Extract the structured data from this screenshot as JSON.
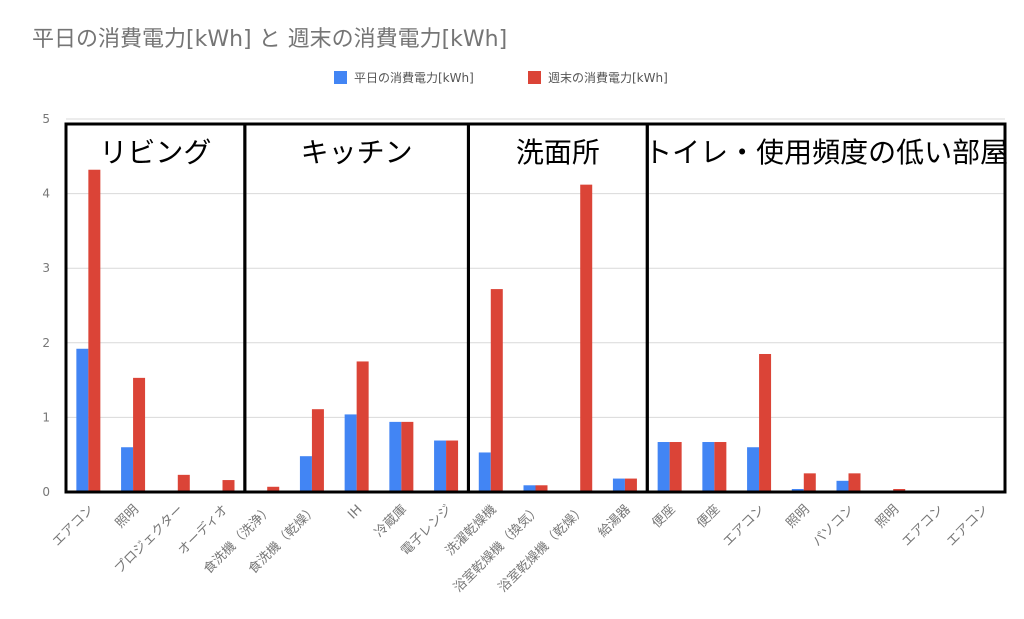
{
  "chart_data": {
    "type": "bar",
    "title": "平日の消費電力[kWh] と 週末の消費電力[kWh]",
    "xlabel": "",
    "ylabel": "",
    "ylim": [
      0,
      5
    ],
    "yticks": [
      "0",
      "1",
      "2",
      "3",
      "4",
      "5"
    ],
    "grid": true,
    "legend_position": "top-center",
    "colors": {
      "weekday": "#4285f4",
      "weekend": "#db4437"
    },
    "categories": [
      "エアコン",
      "照明",
      "プロジェクター",
      "オーディオ",
      "食洗機（洗浄）",
      "食洗機（乾燥）",
      "IH",
      "冷蔵庫",
      "電子レンジ",
      "洗濯乾燥機",
      "浴室乾燥機（換気）",
      "浴室乾燥機（乾燥）",
      "給湯器",
      "便座",
      "便座",
      "エアコン",
      "照明",
      "パソコン",
      "照明",
      "エアコン",
      "エアコン"
    ],
    "series": [
      {
        "name": "平日の消費電力[kWh]",
        "values": [
          1.92,
          0.6,
          0,
          0,
          0.02,
          0.48,
          1.04,
          0.94,
          0.69,
          0.53,
          0.09,
          0,
          0.18,
          0.67,
          0.67,
          0.6,
          0.04,
          0.15,
          0.02,
          0,
          0
        ]
      },
      {
        "name": "週末の消費電力[kWh]",
        "values": [
          4.32,
          1.53,
          0.23,
          0.16,
          0.07,
          1.11,
          1.75,
          0.94,
          0.69,
          2.72,
          0.09,
          4.12,
          0.18,
          0.67,
          0.67,
          1.85,
          0.25,
          0.25,
          0.04,
          0,
          0
        ]
      }
    ],
    "groups": [
      {
        "label": "リビング",
        "start": 0,
        "end": 3
      },
      {
        "label": "キッチン",
        "start": 4,
        "end": 8
      },
      {
        "label": "洗面所",
        "start": 9,
        "end": 12
      },
      {
        "label": "トイレ・使用頻度の低い部屋",
        "start": 13,
        "end": 20
      }
    ]
  }
}
